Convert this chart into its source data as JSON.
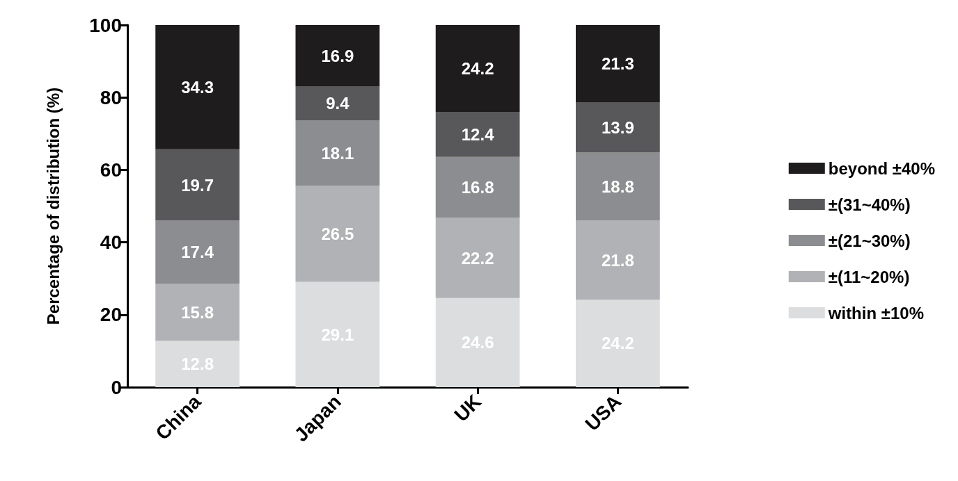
{
  "chart_data": {
    "type": "bar",
    "stacked": true,
    "ylabel": "Percentage of distribution (%)",
    "categories": [
      "China",
      "Japan",
      "UK",
      "USA"
    ],
    "series": [
      {
        "name": "within ±10%",
        "color": "#dcdddf",
        "values": [
          12.8,
          29.1,
          24.6,
          24.2
        ]
      },
      {
        "name": "±(11~20%)",
        "color": "#b1b2b5",
        "values": [
          15.8,
          26.5,
          22.2,
          21.8
        ]
      },
      {
        "name": "±(21~30%)",
        "color": "#8c8d90",
        "values": [
          17.4,
          18.1,
          16.8,
          18.8
        ]
      },
      {
        "name": "±(31~40%)",
        "color": "#58585a",
        "values": [
          19.7,
          9.4,
          12.4,
          13.9
        ]
      },
      {
        "name": "beyond ±40%",
        "color": "#1f1c1d",
        "values": [
          34.3,
          16.9,
          24.2,
          21.3
        ]
      }
    ],
    "ylim": [
      0,
      100
    ],
    "yticks": [
      0,
      20,
      40,
      60,
      80,
      100
    ],
    "grid": false,
    "legend": "right",
    "data_labels": true
  }
}
